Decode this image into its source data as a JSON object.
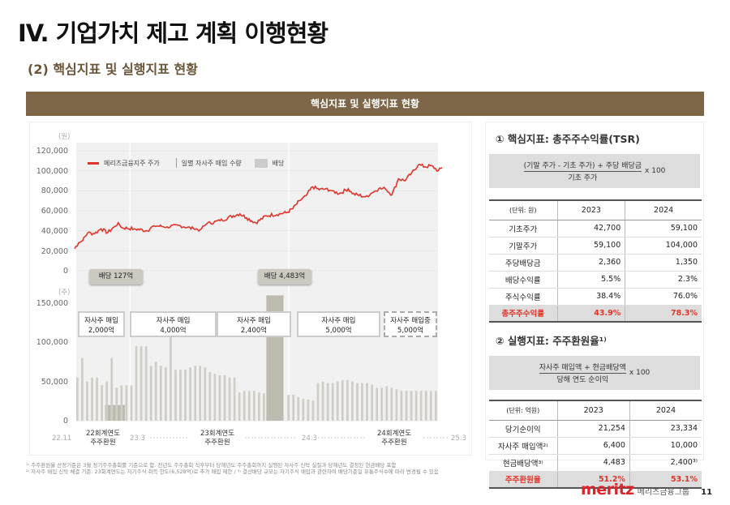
{
  "title": "IV. 기업가치 제고 계획 이행현황",
  "subtitle": "(2) 핵심지표 및 실행지표 현황",
  "banner": "핵심지표 및 실행지표 현황",
  "chart": {
    "price_unit": "(원)",
    "volume_unit": "(주)",
    "price_ticks": [
      "120,000",
      "100,000",
      "80,000",
      "60,000",
      "40,000",
      "20,000",
      "0"
    ],
    "volume_ticks": [
      "150,000",
      "100,000",
      "50,000",
      "0"
    ],
    "legend": {
      "price": "메리츠금융지주 주가",
      "volume": "일별 자사주 매입 수량",
      "dividend": "배당"
    },
    "dividend_labels": [
      "배당 127억",
      "배당 4,483억"
    ],
    "buyback_boxes": [
      {
        "line1": "자사주 매입",
        "line2": "2,000억"
      },
      {
        "line1": "자사주 매입",
        "line2": "4,000억"
      },
      {
        "line1": "자사주 매입",
        "line2": "2,400억"
      },
      {
        "line1": "자사주 매입",
        "line2": "5,000억"
      },
      {
        "line1": "자사주 매입중",
        "line2": "5,000억"
      }
    ],
    "x_labels": [
      "22.11",
      "23.3",
      "24.3",
      "25.3"
    ],
    "periods": [
      {
        "line1": "22회계연도",
        "line2": "주주환원"
      },
      {
        "line1": "23회계연도",
        "line2": "주주환원"
      },
      {
        "line1": "24회계연도",
        "line2": "주주환원"
      }
    ],
    "colors": {
      "price": "#e0352b",
      "bars": "#cfcdc6",
      "dividend": "#bdbab0",
      "plot_bg": "#f1f1f1"
    }
  },
  "chart_data": {
    "type": "line",
    "x_unit": "months since 22.11",
    "price_series": {
      "name": "메리츠금융지주 주가",
      "points": [
        [
          0,
          22000
        ],
        [
          0.3,
          28000
        ],
        [
          0.6,
          30000
        ],
        [
          1,
          38000
        ],
        [
          1.5,
          37000
        ],
        [
          2,
          42000
        ],
        [
          2.5,
          38000
        ],
        [
          3,
          44000
        ],
        [
          3.3,
          48000
        ],
        [
          3.6,
          43000
        ],
        [
          4.5,
          42000
        ],
        [
          5.5,
          40000
        ],
        [
          6,
          45000
        ],
        [
          7,
          44000
        ],
        [
          8,
          45000
        ],
        [
          9,
          42000
        ],
        [
          9.5,
          41000
        ],
        [
          10,
          47000
        ],
        [
          11,
          50000
        ],
        [
          12,
          55000
        ],
        [
          12.5,
          57000
        ],
        [
          13,
          53000
        ],
        [
          13.7,
          48000
        ],
        [
          14.5,
          55000
        ],
        [
          15.5,
          57000
        ],
        [
          16,
          58000
        ],
        [
          16.5,
          62000
        ],
        [
          17,
          70000
        ],
        [
          17.5,
          75000
        ],
        [
          18,
          84000
        ],
        [
          18.5,
          81000
        ],
        [
          19,
          82000
        ],
        [
          19.5,
          80000
        ],
        [
          20,
          77000
        ],
        [
          20.7,
          82000
        ],
        [
          21,
          77000
        ],
        [
          22,
          74000
        ],
        [
          22.5,
          78000
        ],
        [
          23,
          82000
        ],
        [
          23.5,
          82000
        ],
        [
          24,
          76000
        ],
        [
          24.5,
          92000
        ],
        [
          25,
          90000
        ],
        [
          25.5,
          98000
        ],
        [
          26,
          106000
        ],
        [
          26.5,
          104000
        ],
        [
          27,
          105000
        ],
        [
          27.5,
          100000
        ],
        [
          27.8,
          103000
        ]
      ]
    },
    "volume_series": {
      "name": "일별 자사주 매입 수량",
      "values": [
        55000,
        80000,
        50000,
        55000,
        55000,
        45000,
        50000,
        80000,
        42000,
        45000,
        45000,
        45000,
        95000,
        95000,
        95000,
        70000,
        75000,
        70000,
        68000,
        108000,
        65000,
        65000,
        65000,
        68000,
        70000,
        70000,
        68000,
        62000,
        60000,
        58000,
        58000,
        55000,
        55000,
        36000,
        38000,
        38000,
        38000,
        36000,
        35000,
        35000,
        34000,
        34000,
        34000,
        33000,
        33000,
        30000,
        28000,
        27000,
        26000,
        48000,
        50000,
        48000,
        48000,
        50000,
        52000,
        52000,
        50000,
        48000,
        48000,
        48000,
        46000,
        42000,
        42000,
        44000,
        42000,
        40000,
        38000,
        38000,
        38000,
        38000,
        38000,
        38000,
        38000,
        38000
      ]
    },
    "dividend_blocks": [
      {
        "label": "배당 127억",
        "start": 2.3,
        "end": 3.8,
        "value": 20000
      },
      {
        "label": "배당 4,483억",
        "start": 14.5,
        "end": 15.8,
        "value": 160000
      }
    ],
    "price_ylim": [
      0,
      120000
    ],
    "volume_ylim": [
      0,
      150000
    ]
  },
  "right": {
    "tsr": {
      "title": "① 핵심지표: 총주주수익률(TSR)",
      "num": "(기말 주가 - 기초 주가) + 주당 배당금",
      "den": "기초 주가",
      "mult": "x 100",
      "unit": "(단위: 원)",
      "years": [
        "2023",
        "2024"
      ],
      "rows": [
        [
          "기초주가",
          "42,700",
          "59,100"
        ],
        [
          "기말주가",
          "59,100",
          "104,000"
        ],
        [
          "주당배당금",
          "2,360",
          "1,350"
        ],
        [
          "배당수익률",
          "5.5%",
          "2.3%"
        ],
        [
          "주식수익률",
          "38.4%",
          "76.0%"
        ]
      ],
      "sum": [
        "총주주수익률",
        "43.9%",
        "78.3%"
      ]
    },
    "sr": {
      "title": "② 실행지표: 주주환원율¹⁾",
      "num": "자사주 매입액 + 현금배당액",
      "den": "당해 연도 순이익",
      "mult": "x 100",
      "unit": "(단위: 억원)",
      "years": [
        "2023",
        "2024"
      ],
      "rows": [
        [
          "당기순이익",
          "21,254",
          "23,334"
        ],
        [
          "자사주 매입액²⁾",
          "6,400",
          "10,000"
        ],
        [
          "현금배당액³⁾",
          "4,483",
          "2,400³⁾"
        ]
      ],
      "sum": [
        "주주환원율",
        "51.2%",
        "53.1%"
      ]
    }
  },
  "footnotes": [
    "¹⁾ 주주환원율 산정기준은 3월 정기주주총회를 기준으로 함. 전년도 주주총회 직후부터 당해년도 주주총회까지 실행된 자사주 신탁 실질과 당해년도 결정된 현금배당 포함",
    "²⁾ 자사주 매입 신탁 체결 기준. 23회계연도는 자기주식 취득 한도(6,528억)로 추가 매입 제한 / ³⁾ 결산배당 규모는 자기주식 매입과 관련하여 배당기준일 유통주식수에 따라 변경될 수 있음"
  ],
  "footer": {
    "brand": "meritz",
    "brand_kr": "메리츠금융그룹",
    "page": "11"
  }
}
